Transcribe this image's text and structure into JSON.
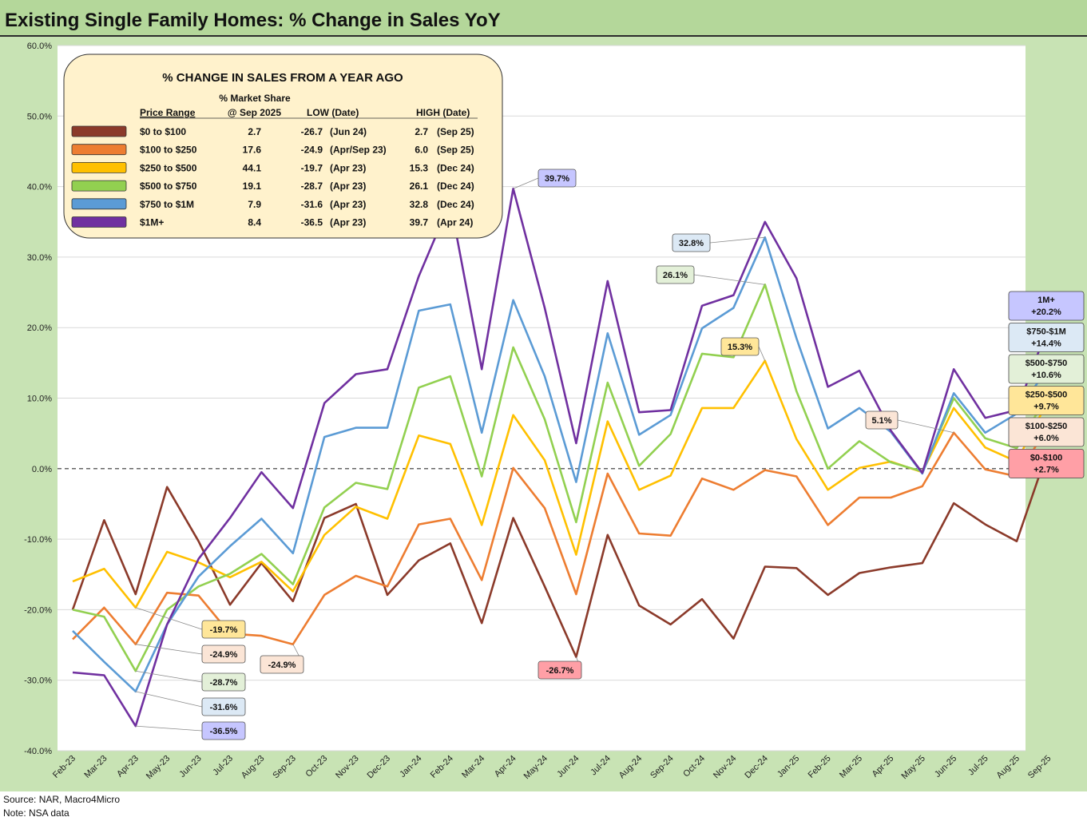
{
  "header": {
    "title": "Existing Single Family Homes: % Change in Sales YoY"
  },
  "footer": {
    "source": "Source: NAR, Macro4Micro",
    "note": "Note: NSA data"
  },
  "chart_data": {
    "type": "line",
    "title": "Existing Single Family Homes: % Change in Sales YoY",
    "ylim": [
      -40,
      60
    ],
    "yticks": [
      "60.0%",
      "50.0%",
      "40.0%",
      "30.0%",
      "20.0%",
      "10.0%",
      "0.0%",
      "-10.0%",
      "-20.0%",
      "-30.0%",
      "-40.0%"
    ],
    "categories": [
      "Feb-23",
      "Mar-23",
      "Apr-23",
      "May-23",
      "Jun-23",
      "Jul-23",
      "Aug-23",
      "Sep-23",
      "Oct-23",
      "Nov-23",
      "Dec-23",
      "Jan-24",
      "Feb-24",
      "Mar-24",
      "Apr-24",
      "May-24",
      "Jun-24",
      "Jul-24",
      "Aug-24",
      "Sep-24",
      "Oct-24",
      "Nov-24",
      "Dec-24",
      "Jan-25",
      "Feb-25",
      "Mar-25",
      "Apr-25",
      "May-25",
      "Jun-25",
      "Jul-25",
      "Aug-25",
      "Sep-25"
    ],
    "series": [
      {
        "name": "$0 to $100",
        "color": "#8b3a2a",
        "values": [
          -20.0,
          -7.3,
          -17.8,
          -2.6,
          -10.3,
          -19.3,
          -13.4,
          -18.8,
          -7.0,
          -5.0,
          -17.9,
          -13.0,
          -10.6,
          -21.9,
          -7.0,
          -16.7,
          -26.7,
          -9.4,
          -19.4,
          -22.1,
          -18.5,
          -24.1,
          -13.9,
          -14.1,
          -17.9,
          -14.8,
          -14.0,
          -13.4,
          -4.9,
          -7.9,
          -10.3,
          2.7
        ]
      },
      {
        "name": "$100 to $250",
        "color": "#ed7d31",
        "values": [
          -24.2,
          -19.7,
          -24.9,
          -17.6,
          -18.0,
          -23.4,
          -23.7,
          -24.9,
          -17.9,
          -15.2,
          -16.7,
          -7.9,
          -7.1,
          -15.8,
          0.1,
          -5.6,
          -17.8,
          -0.7,
          -9.2,
          -9.5,
          -1.4,
          -3.0,
          -0.2,
          -1.1,
          -8.0,
          -4.1,
          -4.1,
          -2.5,
          5.1,
          -0.1,
          -1.1,
          6.0
        ]
      },
      {
        "name": "$250 to $500",
        "color": "#ffc000",
        "values": [
          -16.0,
          -14.2,
          -19.7,
          -11.8,
          -13.3,
          -15.4,
          -13.2,
          -17.4,
          -9.4,
          -5.4,
          -7.1,
          4.7,
          3.5,
          -8.0,
          7.6,
          1.2,
          -12.2,
          6.7,
          -3.0,
          -1.0,
          8.6,
          8.6,
          15.3,
          4.2,
          -3.0,
          0.1,
          1.0,
          -0.5,
          8.6,
          3.0,
          1.0,
          9.7
        ]
      },
      {
        "name": "$500 to $750",
        "color": "#92d050",
        "values": [
          -20.0,
          -21.0,
          -28.7,
          -20.0,
          -16.7,
          -14.9,
          -12.1,
          -16.4,
          -5.5,
          -2.0,
          -2.9,
          11.5,
          13.1,
          -1.1,
          17.2,
          7.0,
          -7.6,
          12.2,
          0.4,
          4.9,
          16.3,
          15.8,
          26.1,
          11.0,
          0.0,
          3.9,
          0.9,
          -0.4,
          10.0,
          4.3,
          2.9,
          10.6
        ]
      },
      {
        "name": "$750 to $1M",
        "color": "#5b9bd5",
        "values": [
          -23.0,
          -27.4,
          -31.6,
          -22.1,
          -15.3,
          -11.0,
          -7.1,
          -12.0,
          4.5,
          5.8,
          5.8,
          22.4,
          23.3,
          5.1,
          23.9,
          13.1,
          -1.9,
          19.2,
          4.8,
          7.6,
          19.9,
          22.8,
          32.8,
          18.5,
          5.7,
          8.6,
          5.2,
          -0.7,
          10.7,
          5.1,
          7.8,
          14.4
        ]
      },
      {
        "name": "$1M+",
        "color": "#7030a0",
        "values": [
          -28.9,
          -29.3,
          -36.5,
          -22.1,
          -12.8,
          -7.0,
          -0.5,
          -5.6,
          9.3,
          13.4,
          14.1,
          27.3,
          37.8,
          14.1,
          39.7,
          22.8,
          3.6,
          26.6,
          8.0,
          8.3,
          23.1,
          24.6,
          35.0,
          27.0,
          11.6,
          13.9,
          5.4,
          -0.6,
          14.1,
          7.2,
          8.3,
          20.2
        ]
      }
    ],
    "legend_box": {
      "title": "% CHANGE IN SALES FROM A YEAR AGO",
      "header_share_top": "% Market Share",
      "header_range": "Price Range",
      "header_share": "@ Sep 2025",
      "header_low": "LOW  (Date)",
      "header_high": "HIGH  (Date)",
      "rows": [
        {
          "label": "$0 to $100",
          "share": "2.7",
          "low": "-26.7",
          "low_date": "(Jun 24)",
          "high": "2.7",
          "high_date": "(Sep 25)",
          "color": "#8b3a2a"
        },
        {
          "label": "$100  to $250",
          "share": "17.6",
          "low": "-24.9",
          "low_date": "(Apr/Sep 23)",
          "high": "6.0",
          "high_date": "(Sep 25)",
          "color": "#ed7d31"
        },
        {
          "label": "$250  to $500",
          "share": "44.1",
          "low": "-19.7",
          "low_date": "(Apr 23)",
          "high": "15.3",
          "high_date": "(Dec 24)",
          "color": "#ffc000"
        },
        {
          "label": "$500  to $750",
          "share": "19.1",
          "low": "-28.7",
          "low_date": "(Apr 23)",
          "high": "26.1",
          "high_date": "(Dec 24)",
          "color": "#92d050"
        },
        {
          "label": "$750  to $1M",
          "share": "7.9",
          "low": "-31.6",
          "low_date": "(Apr 23)",
          "high": "32.8",
          "high_date": "(Dec 24)",
          "color": "#5b9bd5"
        },
        {
          "label": "$1M+",
          "share": "8.4",
          "low": "-36.5",
          "low_date": "(Apr 23)",
          "high": "39.7",
          "high_date": "(Apr 24)",
          "color": "#7030a0"
        }
      ]
    },
    "annotations": [
      {
        "text": "39.7%",
        "fill": "#c6c6ff",
        "series": 5,
        "index": 14
      },
      {
        "text": "32.8%",
        "fill": "#dce9f5",
        "series": 4,
        "index": 22
      },
      {
        "text": "26.1%",
        "fill": "#e3f0d8",
        "series": 3,
        "index": 22
      },
      {
        "text": "15.3%",
        "fill": "#ffe699",
        "series": 2,
        "index": 22
      },
      {
        "text": "5.1%",
        "fill": "#fbe5d6",
        "series": 1,
        "index": 28
      },
      {
        "text": "-19.7%",
        "fill": "#ffe699",
        "series": 2,
        "index": 2
      },
      {
        "text": "-24.9%",
        "fill": "#fbe5d6",
        "series": 1,
        "index": 2
      },
      {
        "text": "-24.9%",
        "fill": "#fbe5d6",
        "series": 1,
        "index": 7
      },
      {
        "text": "-28.7%",
        "fill": "#e3f0d8",
        "series": 3,
        "index": 2
      },
      {
        "text": "-31.6%",
        "fill": "#dce9f5",
        "series": 4,
        "index": 2
      },
      {
        "text": "-36.5%",
        "fill": "#c6c6ff",
        "series": 5,
        "index": 2
      },
      {
        "text": "-26.7%",
        "fill": "#ff9fa6",
        "series": 0,
        "index": 16
      }
    ],
    "end_labels": [
      {
        "name": "1M+",
        "value": "+20.2%",
        "fill": "#c6c6ff"
      },
      {
        "name": "$750-$1M",
        "value": "+14.4%",
        "fill": "#dce9f5"
      },
      {
        "name": "$500-$750",
        "value": "+10.6%",
        "fill": "#e3f0d8"
      },
      {
        "name": "$250-$500",
        "value": "+9.7%",
        "fill": "#ffe699"
      },
      {
        "name": "$100-$250",
        "value": "+6.0%",
        "fill": "#fbe5d6"
      },
      {
        "name": "$0-$100",
        "value": "+2.7%",
        "fill": "#ff9fa6"
      }
    ]
  }
}
